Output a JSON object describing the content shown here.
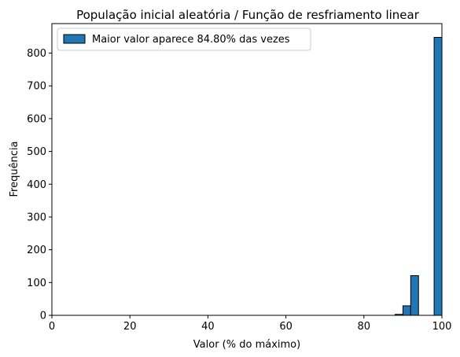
{
  "chart_data": {
    "type": "bar",
    "title": "População inicial aleatória / Função de resfriamento linear",
    "xlabel": "Valor (% do máximo)",
    "ylabel": "Frequência",
    "xlim": [
      0,
      100
    ],
    "ylim": [
      0,
      890
    ],
    "xticks": [
      0,
      20,
      40,
      60,
      80,
      100
    ],
    "yticks": [
      0,
      100,
      200,
      300,
      400,
      500,
      600,
      700,
      800
    ],
    "bin_edges": [
      88,
      90,
      92,
      94,
      96,
      98,
      100
    ],
    "values": [
      3,
      29,
      121,
      0,
      0,
      848
    ],
    "series_name": "Maior valor aparece 84.80% das vezes",
    "legend_position": "upper left",
    "bar_color": "#1f77b4",
    "edge_color": "#000000",
    "grid": false
  }
}
